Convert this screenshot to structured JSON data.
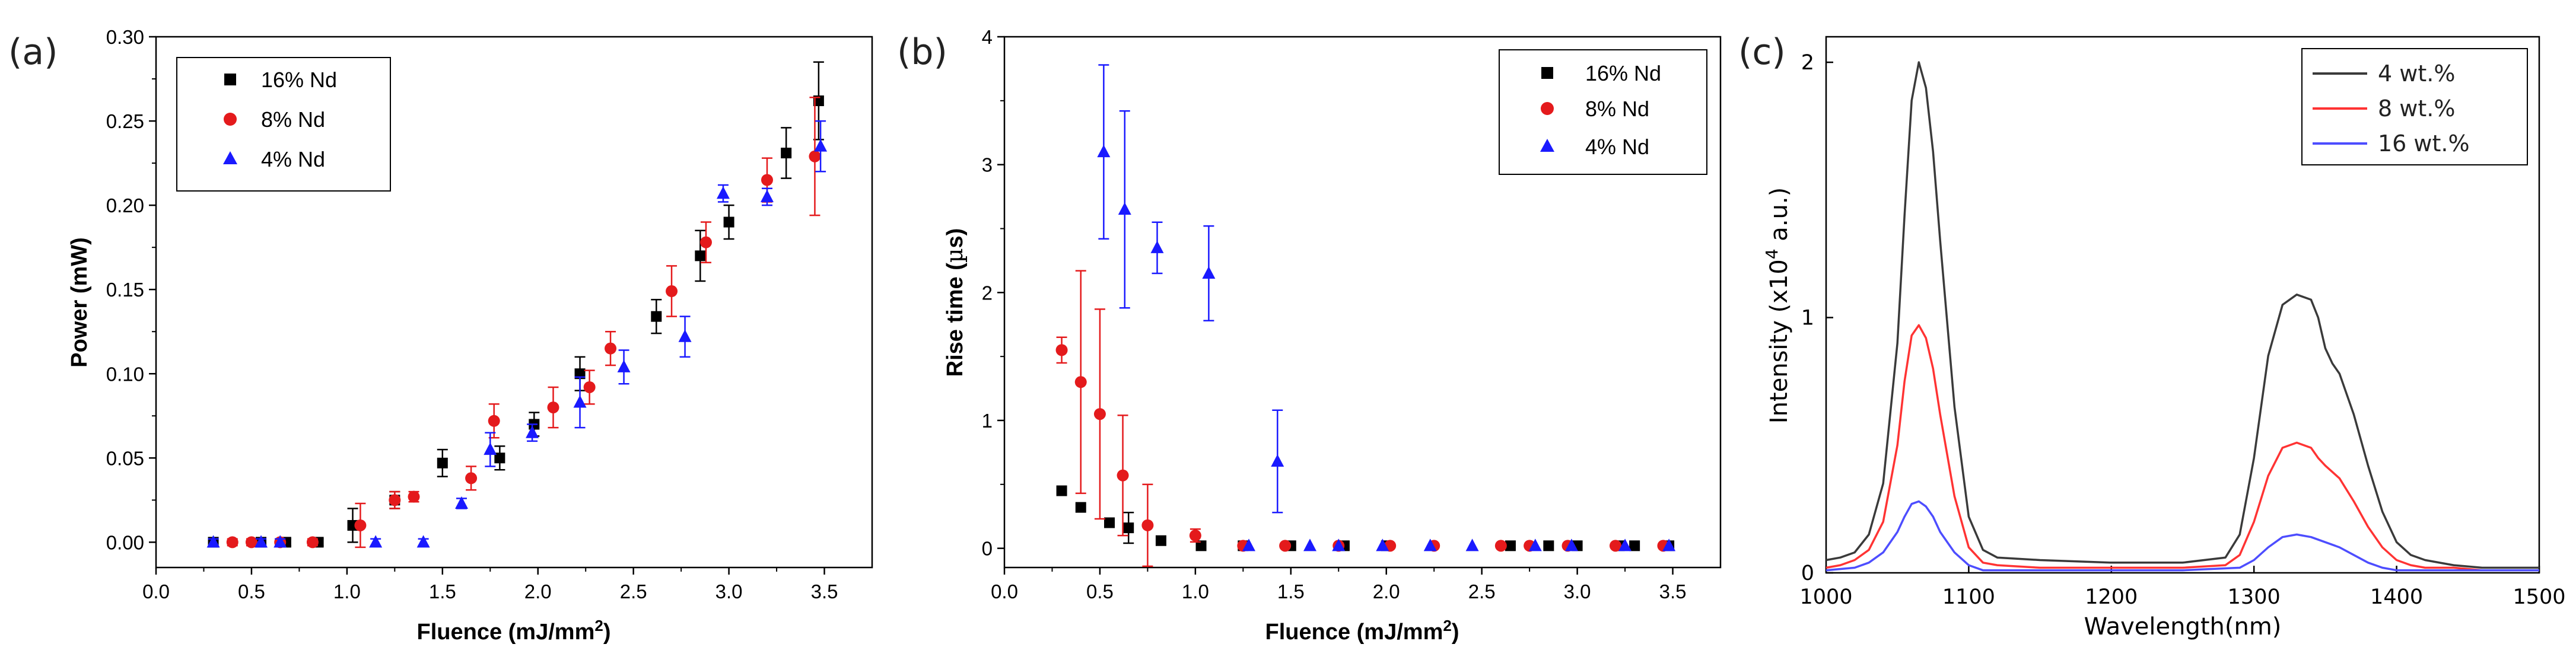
{
  "chart_data": [
    {
      "panel": "(a)",
      "type": "scatter",
      "xlabel": "Fluence (mJ/mm2)",
      "xlabel_main": "Fluence (mJ/mm",
      "xlabel_sup": "2",
      "xlabel_close": ")",
      "ylabel": "Power (mW)",
      "xlim": [
        0,
        3.75
      ],
      "ylim": [
        -0.015,
        0.3
      ],
      "xticks": [
        "0.0",
        "0.5",
        "1.0",
        "1.5",
        "2.0",
        "2.5",
        "3.0",
        "3.5"
      ],
      "yticks": [
        "0.00",
        "0.05",
        "0.10",
        "0.15",
        "0.20",
        "0.25",
        "0.30"
      ],
      "legend_position": "top-left",
      "series": [
        {
          "name": "16% Nd",
          "color": "#000000",
          "marker": "square",
          "x": [
            0.3,
            0.55,
            0.68,
            0.85,
            1.03,
            1.25,
            1.5,
            1.8,
            1.98,
            2.22,
            2.62,
            2.85,
            3.0,
            3.3,
            3.47
          ],
          "y": [
            0,
            0,
            0,
            0,
            0.01,
            0.025,
            0.047,
            0.05,
            0.07,
            0.1,
            0.134,
            0.17,
            0.19,
            0.231,
            0.262
          ],
          "err": [
            0.002,
            0.002,
            0.002,
            0.002,
            0.01,
            0.005,
            0.008,
            0.007,
            0.007,
            0.01,
            0.01,
            0.015,
            0.01,
            0.015,
            0.023
          ]
        },
        {
          "name": "8% Nd",
          "color": "#e41a1c",
          "marker": "circle",
          "x": [
            0.4,
            0.5,
            0.65,
            0.82,
            1.07,
            1.25,
            1.35,
            1.65,
            1.77,
            2.08,
            2.27,
            2.38,
            2.7,
            2.88,
            3.2,
            3.45
          ],
          "y": [
            0,
            0,
            0,
            0,
            0.01,
            0.025,
            0.027,
            0.038,
            0.072,
            0.08,
            0.092,
            0.115,
            0.149,
            0.178,
            0.215,
            0.229
          ],
          "err": [
            0.002,
            0.002,
            0.002,
            0.002,
            0.013,
            0.005,
            0.003,
            0.007,
            0.01,
            0.012,
            0.01,
            0.01,
            0.015,
            0.012,
            0.013,
            0.035
          ]
        },
        {
          "name": "4% Nd",
          "color": "#1a1aff",
          "marker": "triangle",
          "x": [
            0.3,
            0.55,
            0.65,
            1.15,
            1.4,
            1.6,
            1.75,
            1.97,
            2.22,
            2.45,
            2.77,
            2.97,
            3.2,
            3.48
          ],
          "y": [
            0,
            0,
            0,
            0,
            0,
            0.023,
            0.055,
            0.065,
            0.083,
            0.104,
            0.122,
            0.207,
            0.205,
            0.235
          ],
          "err": [
            0.002,
            0.002,
            0.002,
            0.002,
            0.002,
            0.003,
            0.01,
            0.005,
            0.015,
            0.01,
            0.012,
            0.005,
            0.005,
            0.015
          ]
        }
      ]
    },
    {
      "panel": "(b)",
      "type": "scatter",
      "xlabel": "Fluence (mJ/mm2)",
      "xlabel_main": "Fluence (mJ/mm",
      "xlabel_sup": "2",
      "xlabel_close": ")",
      "ylabel": "Rise time (µs)",
      "ylabel_main": "Rise time (",
      "ylabel_mu": "µ",
      "ylabel_unit": "s)",
      "xlim": [
        0,
        3.75
      ],
      "ylim": [
        -0.15,
        4
      ],
      "xticks": [
        "0.0",
        "0.5",
        "1.0",
        "1.5",
        "2.0",
        "2.5",
        "3.0",
        "3.5"
      ],
      "yticks": [
        "0",
        "1",
        "2",
        "3",
        "4"
      ],
      "legend_position": "top-right",
      "series": [
        {
          "name": "16% Nd",
          "color": "#000000",
          "marker": "square",
          "x": [
            0.3,
            0.4,
            0.55,
            0.65,
            0.82,
            1.03,
            1.25,
            1.5,
            1.78,
            2.0,
            2.65,
            2.85,
            3.0,
            3.22,
            3.3,
            3.48
          ],
          "y": [
            0.45,
            0.32,
            0.2,
            0.16,
            0.06,
            0.02,
            0.02,
            0.02,
            0.02,
            0.02,
            0.02,
            0.02,
            0.02,
            0.02,
            0.02,
            0.02
          ],
          "err": [
            0,
            0,
            0,
            0.12,
            0,
            0,
            0,
            0,
            0,
            0,
            0,
            0,
            0,
            0,
            0,
            0
          ]
        },
        {
          "name": "8% Nd",
          "color": "#e41a1c",
          "marker": "circle",
          "x": [
            0.3,
            0.4,
            0.5,
            0.62,
            0.75,
            1.0,
            1.25,
            1.47,
            1.75,
            2.02,
            2.25,
            2.6,
            2.75,
            2.95,
            3.2,
            3.45
          ],
          "y": [
            1.55,
            1.3,
            1.05,
            0.57,
            0.18,
            0.1,
            0.02,
            0.02,
            0.02,
            0.02,
            0.02,
            0.02,
            0.02,
            0.02,
            0.02,
            0.02
          ],
          "err": [
            0.1,
            0.87,
            0.82,
            0.47,
            0.32,
            0.05,
            0,
            0,
            0,
            0,
            0,
            0,
            0,
            0,
            0,
            0
          ]
        },
        {
          "name": "4% Nd",
          "color": "#1a1aff",
          "marker": "triangle",
          "x": [
            0.52,
            0.63,
            0.8,
            1.07,
            1.28,
            1.43,
            1.6,
            1.75,
            1.98,
            2.23,
            2.45,
            2.78,
            2.97,
            3.25,
            3.48
          ],
          "y": [
            3.1,
            2.65,
            2.35,
            2.15,
            0.02,
            0.68,
            0.02,
            0.02,
            0.02,
            0.02,
            0.02,
            0.02,
            0.02,
            0.02,
            0.02
          ],
          "err": [
            0.68,
            0.77,
            0.2,
            0.37,
            0,
            0.4,
            0,
            0,
            0,
            0,
            0,
            0,
            0,
            0,
            0
          ]
        }
      ]
    },
    {
      "panel": "(c)",
      "type": "line",
      "xlabel": "Wavelength(nm)",
      "ylabel": "Intensity (x10^4 a.u.)",
      "ylabel_pre": "Intensity (x10",
      "ylabel_sup": "4",
      "ylabel_post": " a.u.)",
      "xlim": [
        1000,
        1500
      ],
      "ylim": [
        0,
        2.1
      ],
      "xticks": [
        "1000",
        "1100",
        "1200",
        "1300",
        "1400",
        "1500"
      ],
      "yticks": [
        "0",
        "1",
        "2"
      ],
      "legend_position": "top-right",
      "series": [
        {
          "name": "4 wt.%",
          "color": "#3a3a3a",
          "x": [
            1000,
            1010,
            1020,
            1030,
            1040,
            1050,
            1055,
            1060,
            1065,
            1070,
            1075,
            1080,
            1090,
            1100,
            1110,
            1120,
            1150,
            1200,
            1250,
            1280,
            1290,
            1300,
            1310,
            1320,
            1330,
            1340,
            1345,
            1350,
            1355,
            1360,
            1370,
            1380,
            1390,
            1400,
            1410,
            1420,
            1440,
            1460,
            1480,
            1500
          ],
          "y": [
            0.05,
            0.06,
            0.08,
            0.15,
            0.35,
            0.9,
            1.4,
            1.85,
            2.0,
            1.9,
            1.65,
            1.3,
            0.65,
            0.22,
            0.09,
            0.06,
            0.05,
            0.04,
            0.04,
            0.06,
            0.15,
            0.45,
            0.85,
            1.05,
            1.09,
            1.07,
            1.0,
            0.88,
            0.82,
            0.78,
            0.62,
            0.42,
            0.24,
            0.12,
            0.07,
            0.05,
            0.03,
            0.02,
            0.02,
            0.02
          ]
        },
        {
          "name": "8 wt.%",
          "color": "#ff3333",
          "x": [
            1000,
            1010,
            1020,
            1030,
            1040,
            1050,
            1055,
            1060,
            1065,
            1070,
            1075,
            1080,
            1090,
            1100,
            1110,
            1120,
            1150,
            1200,
            1250,
            1280,
            1290,
            1300,
            1310,
            1320,
            1330,
            1340,
            1345,
            1350,
            1360,
            1370,
            1380,
            1390,
            1400,
            1410,
            1420,
            1440,
            1460,
            1480,
            1500
          ],
          "y": [
            0.02,
            0.03,
            0.05,
            0.09,
            0.2,
            0.5,
            0.75,
            0.93,
            0.97,
            0.92,
            0.8,
            0.62,
            0.3,
            0.1,
            0.04,
            0.03,
            0.02,
            0.02,
            0.02,
            0.03,
            0.07,
            0.2,
            0.38,
            0.49,
            0.51,
            0.49,
            0.45,
            0.42,
            0.37,
            0.28,
            0.18,
            0.1,
            0.05,
            0.03,
            0.02,
            0.02,
            0.01,
            0.01,
            0.01
          ]
        },
        {
          "name": "16 wt.%",
          "color": "#4d4dff",
          "x": [
            1000,
            1020,
            1030,
            1040,
            1050,
            1055,
            1060,
            1065,
            1070,
            1075,
            1080,
            1090,
            1100,
            1110,
            1150,
            1200,
            1250,
            1290,
            1300,
            1310,
            1320,
            1330,
            1340,
            1350,
            1360,
            1370,
            1380,
            1390,
            1400,
            1420,
            1450,
            1500
          ],
          "y": [
            0.01,
            0.02,
            0.04,
            0.08,
            0.16,
            0.22,
            0.27,
            0.28,
            0.26,
            0.22,
            0.16,
            0.08,
            0.03,
            0.01,
            0.01,
            0.01,
            0.01,
            0.02,
            0.05,
            0.1,
            0.14,
            0.15,
            0.14,
            0.12,
            0.1,
            0.07,
            0.04,
            0.02,
            0.01,
            0.01,
            0.01,
            0.01
          ]
        }
      ]
    }
  ]
}
